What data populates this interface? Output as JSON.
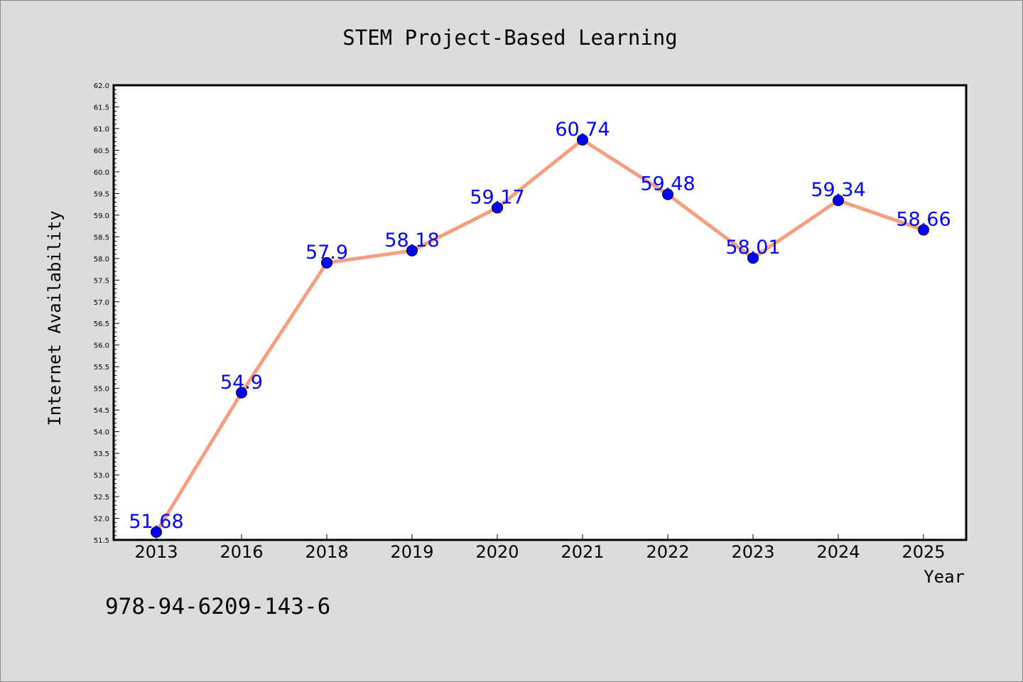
{
  "chart_data": {
    "type": "line",
    "title": "STEM Project-Based Learning",
    "xlabel": "Year",
    "ylabel": "Internet Availability",
    "categories": [
      "2013",
      "2016",
      "2018",
      "2019",
      "2020",
      "2021",
      "2022",
      "2023",
      "2024",
      "2025"
    ],
    "values": [
      51.68,
      54.9,
      57.9,
      58.18,
      59.17,
      60.74,
      59.48,
      58.01,
      59.34,
      58.66
    ],
    "data_labels": [
      "51.68",
      "54.9",
      "57.9",
      "58.18",
      "59.17",
      "60.74",
      "59.48",
      "58.01",
      "59.34",
      "58.66"
    ],
    "ylim": [
      51.5,
      62.0
    ],
    "ytick_step": 0.5,
    "grid": false,
    "legend": "none",
    "colors": {
      "line": "#f4a080",
      "marker": "#0000ff",
      "label": "#0000ff",
      "plot_bg": "#ffffff",
      "figure_bg": "#dcdcdc"
    }
  },
  "footnote": "978-94-6209-143-6"
}
